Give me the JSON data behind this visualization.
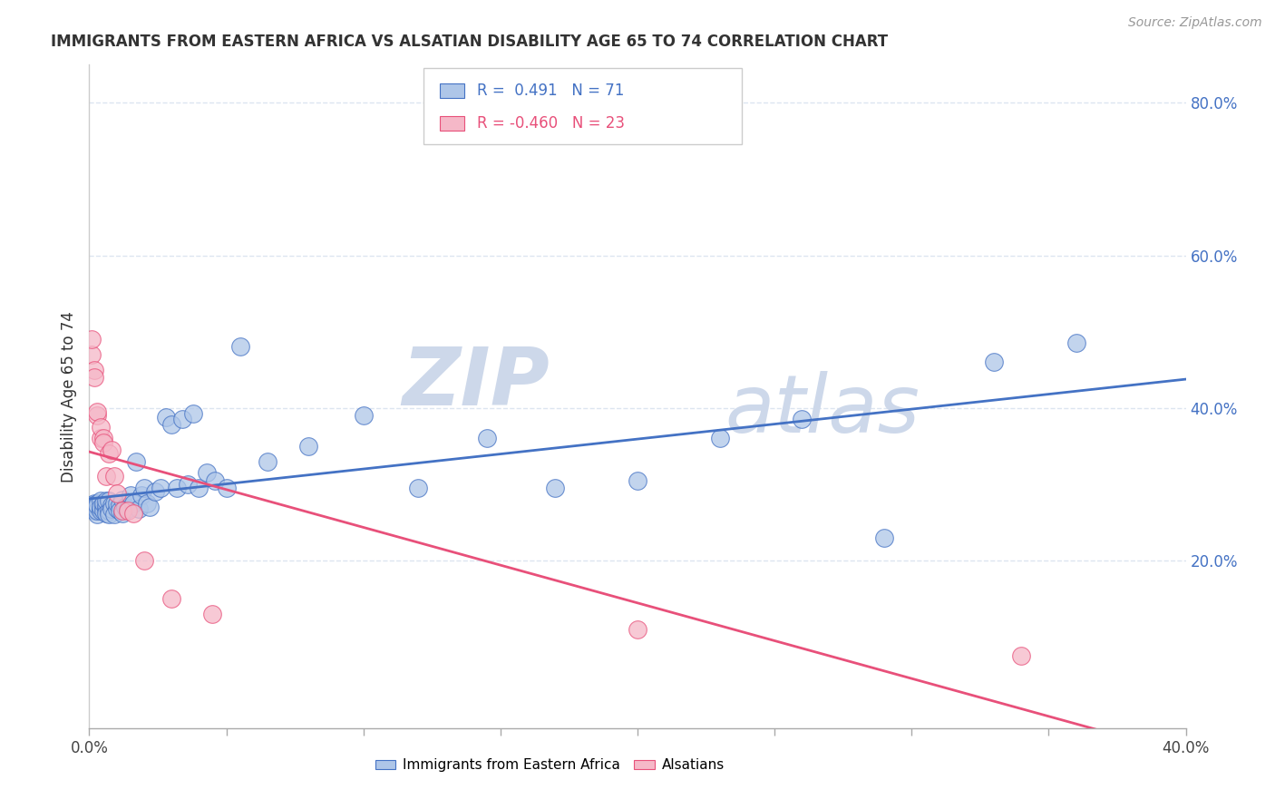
{
  "title": "IMMIGRANTS FROM EASTERN AFRICA VS ALSATIAN DISABILITY AGE 65 TO 74 CORRELATION CHART",
  "source": "Source: ZipAtlas.com",
  "ylabel": "Disability Age 65 to 74",
  "legend_labels": [
    "Immigrants from Eastern Africa",
    "Alsatians"
  ],
  "blue_R": "0.491",
  "blue_N": "71",
  "pink_R": "-0.460",
  "pink_N": "23",
  "blue_color": "#aec6e8",
  "pink_color": "#f5b8c8",
  "blue_line_color": "#4472c4",
  "pink_line_color": "#e8507a",
  "watermark_zip": "ZIP",
  "watermark_atlas": "atlas",
  "watermark_color": "#cdd8ea",
  "xlim": [
    0.0,
    0.4
  ],
  "ylim": [
    -0.02,
    0.85
  ],
  "xtick_positions": [
    0.0,
    0.05,
    0.1,
    0.15,
    0.2,
    0.25,
    0.3,
    0.35,
    0.4
  ],
  "xtick_labels_show": [
    "0.0%",
    "",
    "",
    "",
    "",
    "",
    "",
    "",
    "40.0%"
  ],
  "yticks_right": [
    0.2,
    0.4,
    0.6,
    0.8
  ],
  "blue_points_x": [
    0.001,
    0.001,
    0.001,
    0.002,
    0.002,
    0.002,
    0.002,
    0.003,
    0.003,
    0.003,
    0.003,
    0.003,
    0.004,
    0.004,
    0.004,
    0.004,
    0.005,
    0.005,
    0.005,
    0.006,
    0.006,
    0.006,
    0.006,
    0.007,
    0.007,
    0.007,
    0.008,
    0.008,
    0.009,
    0.009,
    0.01,
    0.01,
    0.011,
    0.011,
    0.012,
    0.012,
    0.013,
    0.014,
    0.015,
    0.016,
    0.017,
    0.018,
    0.019,
    0.02,
    0.021,
    0.022,
    0.024,
    0.026,
    0.028,
    0.03,
    0.032,
    0.034,
    0.036,
    0.038,
    0.04,
    0.043,
    0.046,
    0.05,
    0.055,
    0.065,
    0.08,
    0.1,
    0.12,
    0.145,
    0.17,
    0.2,
    0.23,
    0.26,
    0.29,
    0.33,
    0.36
  ],
  "blue_points_y": [
    0.27,
    0.268,
    0.272,
    0.265,
    0.275,
    0.272,
    0.268,
    0.26,
    0.275,
    0.27,
    0.265,
    0.272,
    0.278,
    0.268,
    0.265,
    0.27,
    0.27,
    0.265,
    0.275,
    0.268,
    0.272,
    0.262,
    0.278,
    0.265,
    0.278,
    0.26,
    0.272,
    0.268,
    0.275,
    0.26,
    0.268,
    0.275,
    0.272,
    0.265,
    0.28,
    0.262,
    0.27,
    0.268,
    0.285,
    0.275,
    0.33,
    0.268,
    0.285,
    0.295,
    0.275,
    0.27,
    0.29,
    0.295,
    0.388,
    0.378,
    0.295,
    0.385,
    0.3,
    0.392,
    0.295,
    0.315,
    0.305,
    0.295,
    0.48,
    0.33,
    0.35,
    0.39,
    0.295,
    0.36,
    0.295,
    0.305,
    0.36,
    0.385,
    0.23,
    0.46,
    0.485
  ],
  "pink_points_x": [
    0.001,
    0.001,
    0.002,
    0.002,
    0.003,
    0.003,
    0.004,
    0.004,
    0.005,
    0.005,
    0.006,
    0.007,
    0.008,
    0.009,
    0.01,
    0.012,
    0.014,
    0.016,
    0.02,
    0.03,
    0.045,
    0.2,
    0.34
  ],
  "pink_points_y": [
    0.47,
    0.49,
    0.45,
    0.44,
    0.39,
    0.395,
    0.36,
    0.375,
    0.36,
    0.355,
    0.31,
    0.34,
    0.345,
    0.31,
    0.288,
    0.265,
    0.265,
    0.262,
    0.2,
    0.15,
    0.13,
    0.11,
    0.075
  ],
  "background_color": "#ffffff",
  "grid_color": "#dce5f0"
}
